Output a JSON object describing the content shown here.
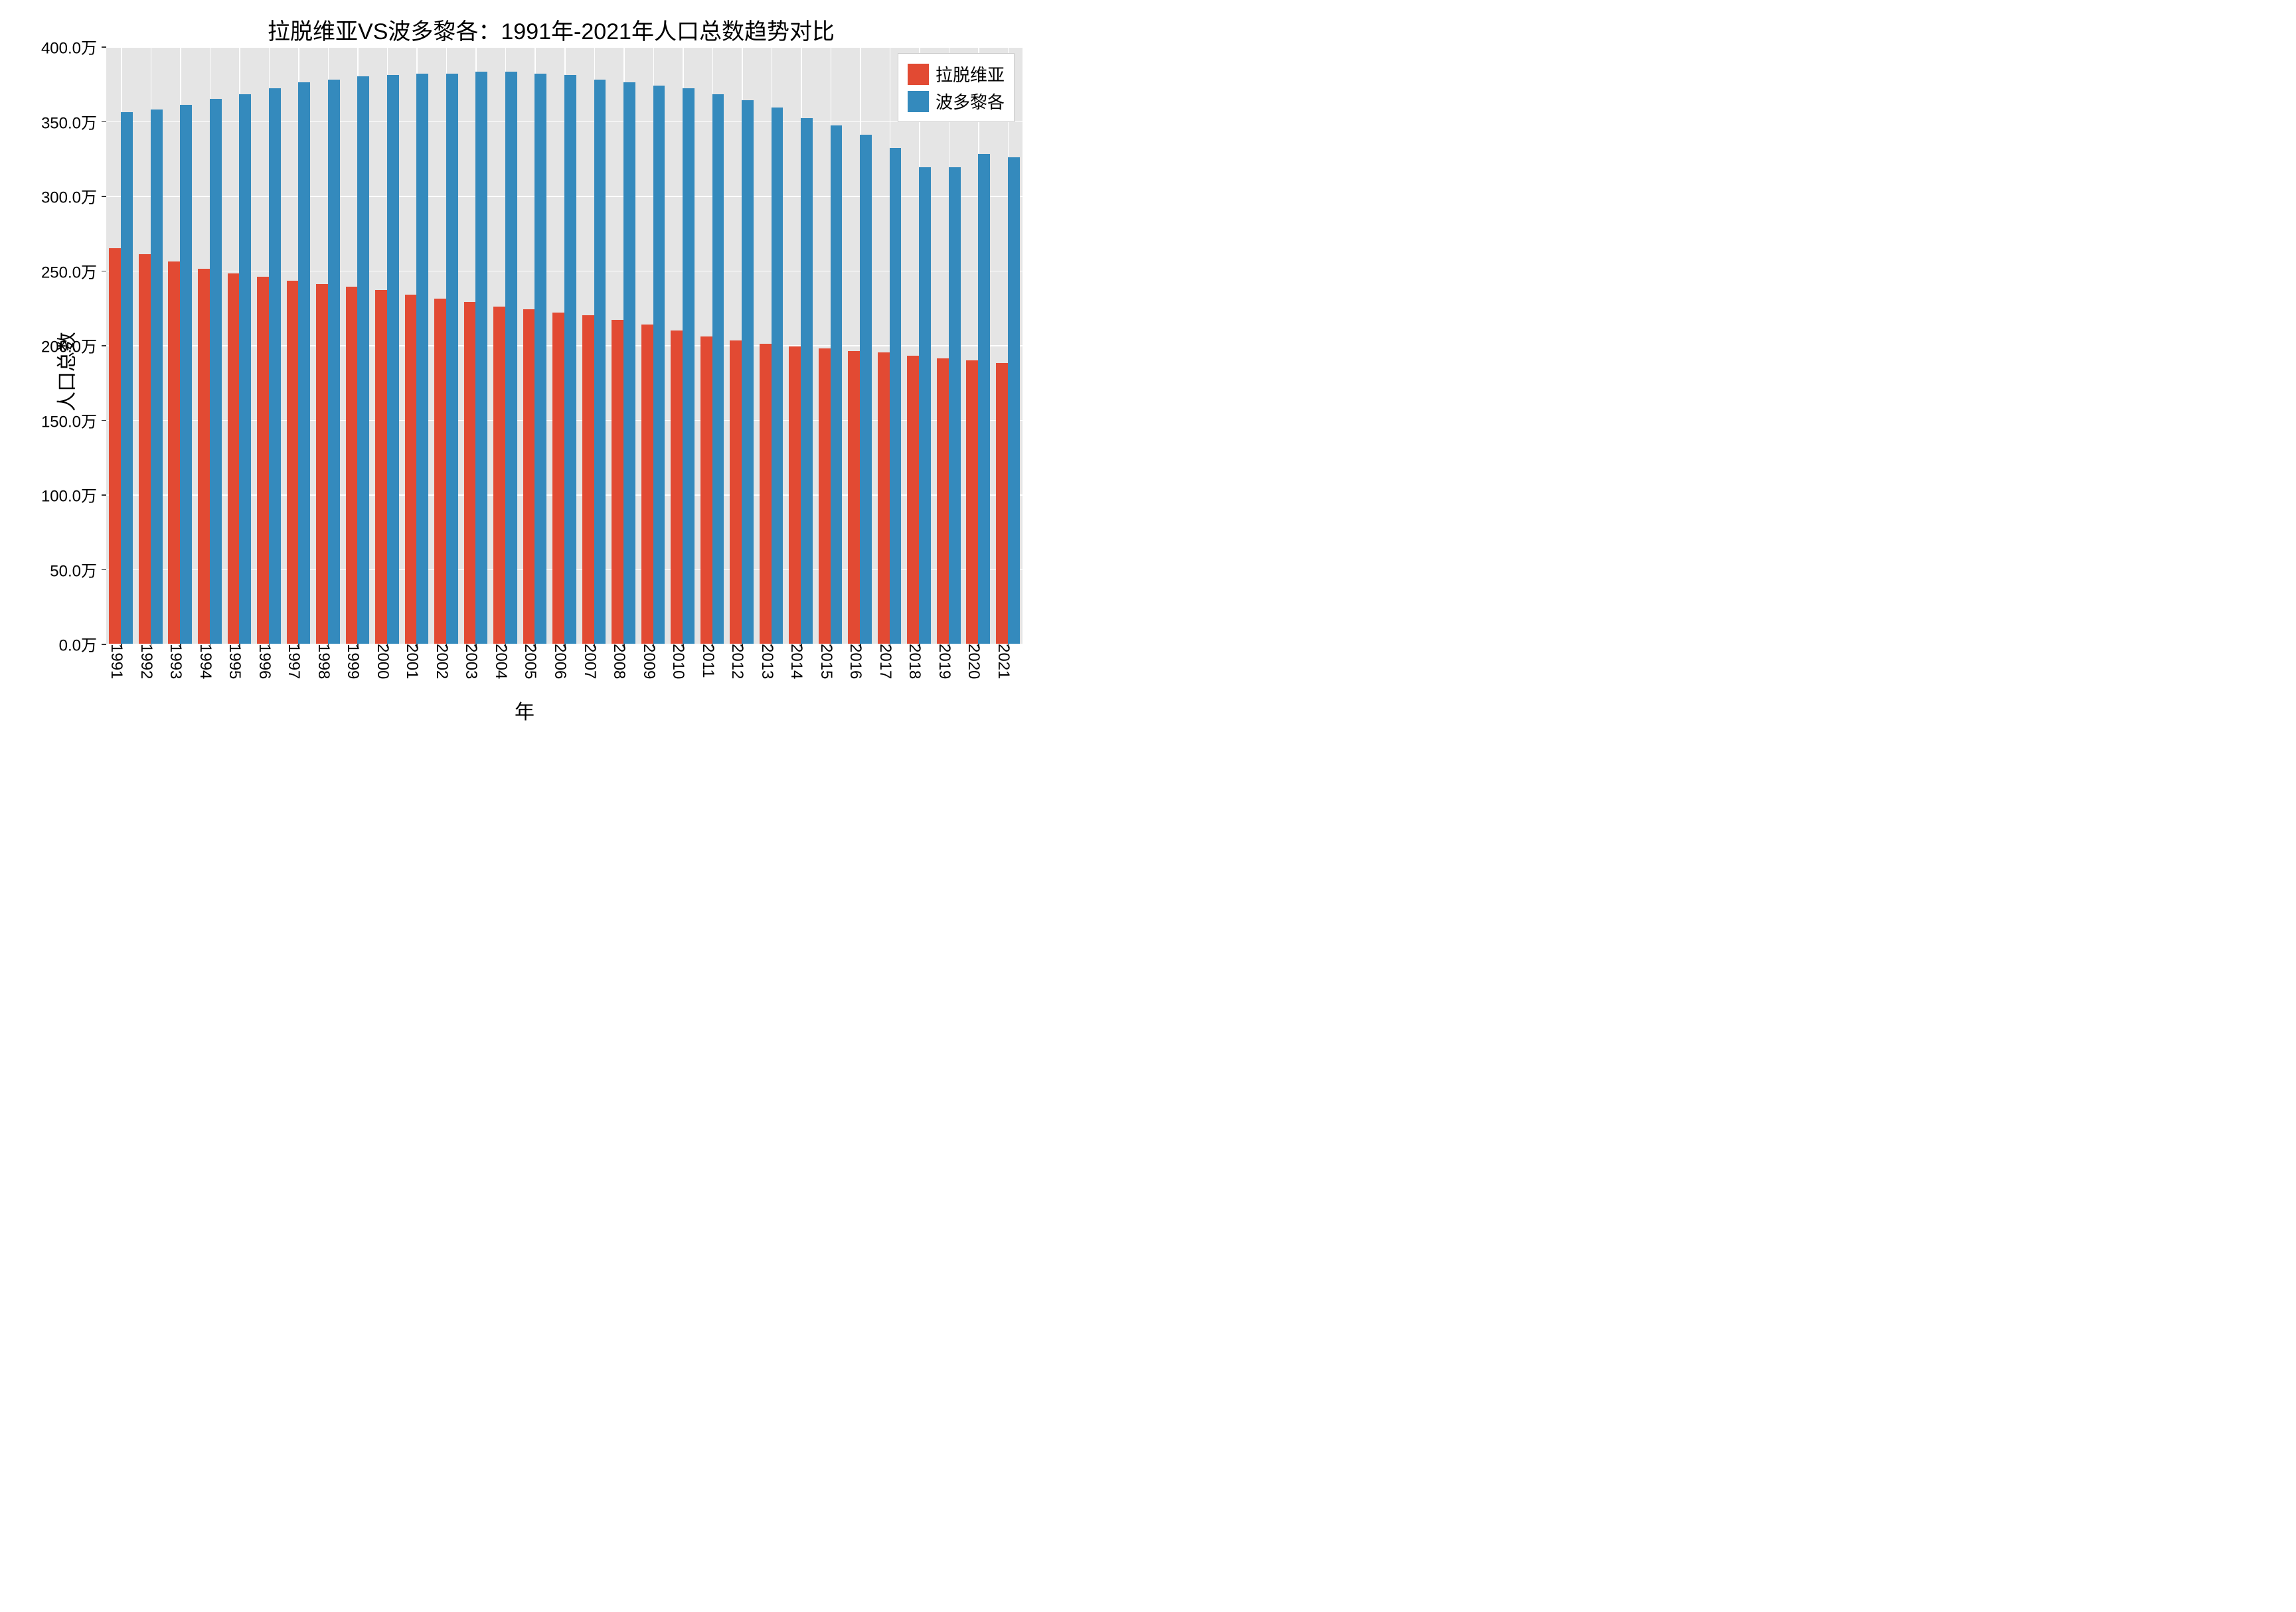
{
  "chart": {
    "type": "bar",
    "title": "拉脱维亚VS波多黎各：1991年-2021年人口总数趋势对比",
    "title_fontsize": 34,
    "title_color": "#000000",
    "xlabel": "年",
    "ylabel": "人口总数",
    "axis_label_fontsize": 30,
    "tick_fontsize": 24,
    "background_color": "#ffffff",
    "plot_bg_color": "#e5e5e5",
    "grid_color": "#ffffff",
    "ylim": [
      0,
      400
    ],
    "ytick_step": 50,
    "ytick_labels": [
      "0.0万",
      "50.0万",
      "100.0万",
      "150.0万",
      "200.0万",
      "250.0万",
      "300.0万",
      "350.0万",
      "400.0万"
    ],
    "categories": [
      "1991",
      "1992",
      "1993",
      "1994",
      "1995",
      "1996",
      "1997",
      "1998",
      "1999",
      "2000",
      "2001",
      "2002",
      "2003",
      "2004",
      "2005",
      "2006",
      "2007",
      "2008",
      "2009",
      "2010",
      "2011",
      "2012",
      "2013",
      "2014",
      "2015",
      "2016",
      "2017",
      "2018",
      "2019",
      "2020",
      "2021"
    ],
    "series": [
      {
        "name": "拉脱维亚",
        "color": "#e24a33",
        "values": [
          265,
          261,
          256,
          251,
          248,
          246,
          243,
          241,
          239,
          237,
          234,
          231,
          229,
          226,
          224,
          222,
          220,
          217,
          214,
          210,
          206,
          203,
          201,
          199,
          198,
          196,
          195,
          193,
          191,
          190,
          188
        ]
      },
      {
        "name": "波多黎各",
        "color": "#348abd",
        "values": [
          356,
          358,
          361,
          365,
          368,
          372,
          376,
          378,
          380,
          381,
          382,
          382,
          383,
          383,
          382,
          381,
          378,
          376,
          374,
          372,
          368,
          364,
          359,
          352,
          347,
          341,
          332,
          319,
          319,
          328,
          326
        ]
      }
    ],
    "bar_group_width": 0.8,
    "legend": {
      "position": "top-right",
      "fontsize": 26,
      "border_color": "#cccccc",
      "bg_color": "#ffffff"
    }
  }
}
